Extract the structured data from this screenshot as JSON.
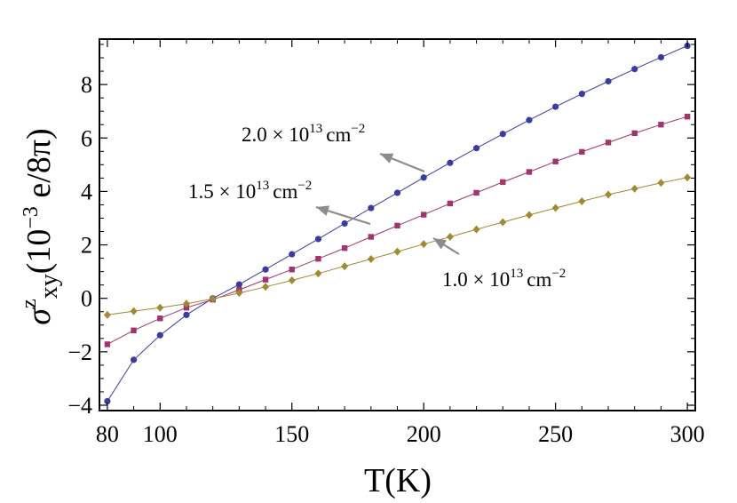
{
  "chart_data": {
    "type": "line",
    "xlabel": "T(K)",
    "ylabel": {
      "main": "σ",
      "superscript": "z",
      "subscript": "xy",
      "units": "(10",
      "units_exponent": "−3",
      "units_tail": " e/8π)"
    },
    "xlim": [
      77,
      303
    ],
    "ylim": [
      -4.2,
      9.7
    ],
    "x_ticks": [
      80,
      100,
      150,
      200,
      250,
      300
    ],
    "y_ticks": [
      -4,
      -2,
      0,
      2,
      4,
      6,
      8
    ],
    "x_tick_labels": [
      "80",
      "100",
      "150",
      "200",
      "250",
      "300"
    ],
    "y_tick_labels": [
      "−4",
      "−2",
      "0",
      "2",
      "4",
      "6",
      "8"
    ],
    "grid": false,
    "x": [
      80,
      90,
      100,
      110,
      120,
      130,
      140,
      150,
      160,
      170,
      180,
      190,
      200,
      210,
      220,
      230,
      240,
      250,
      260,
      270,
      280,
      290,
      300
    ],
    "series": [
      {
        "name": "2.0 × 10^13 cm^−2",
        "color": "#3b3ba0",
        "marker": "circle",
        "values": [
          -3.85,
          -2.3,
          -1.38,
          -0.62,
          0.0,
          0.52,
          1.08,
          1.65,
          2.22,
          2.8,
          3.38,
          3.95,
          4.52,
          5.07,
          5.62,
          6.15,
          6.67,
          7.17,
          7.65,
          8.12,
          8.58,
          9.02,
          9.45
        ]
      },
      {
        "name": "1.5 × 10^13 cm^−2",
        "color": "#a0366e",
        "marker": "square",
        "values": [
          -1.72,
          -1.2,
          -0.75,
          -0.35,
          -0.05,
          0.32,
          0.7,
          1.08,
          1.48,
          1.88,
          2.3,
          2.72,
          3.13,
          3.55,
          3.95,
          4.35,
          4.73,
          5.12,
          5.48,
          5.83,
          6.18,
          6.5,
          6.8
        ]
      },
      {
        "name": "1.0 × 10^13 cm^−2",
        "color": "#a08a32",
        "marker": "diamond",
        "values": [
          -0.62,
          -0.48,
          -0.35,
          -0.2,
          -0.02,
          0.2,
          0.43,
          0.67,
          0.93,
          1.2,
          1.47,
          1.75,
          2.03,
          2.3,
          2.58,
          2.85,
          3.12,
          3.38,
          3.63,
          3.88,
          4.1,
          4.32,
          4.52
        ]
      }
    ],
    "annotations": [
      {
        "mantissa": "2.0",
        "exponent": "13",
        "unit": "cm",
        "unit_exponent": "−2"
      },
      {
        "mantissa": "1.5",
        "exponent": "13",
        "unit": "cm",
        "unit_exponent": "−2"
      },
      {
        "mantissa": "1.0",
        "exponent": "13",
        "unit": "cm",
        "unit_exponent": "−2"
      }
    ],
    "arrow_color": "#8c8c8c"
  }
}
